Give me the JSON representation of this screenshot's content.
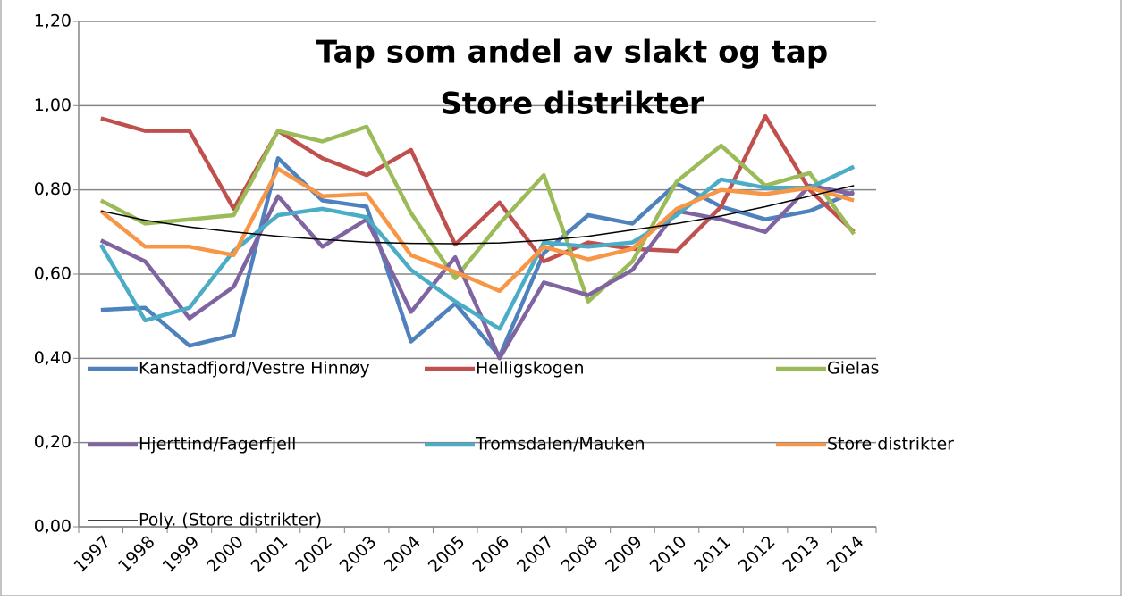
{
  "chart_data": {
    "type": "line",
    "title": "Tap som andel av slakt og tap",
    "subtitle": "Store distrikter",
    "categories": [
      "1997",
      "1998",
      "1999",
      "2000",
      "2001",
      "2002",
      "2003",
      "2004",
      "2005",
      "2006",
      "2007",
      "2008",
      "2009",
      "2010",
      "2011",
      "2012",
      "2013",
      "2014"
    ],
    "series": [
      {
        "name": "Kanstadfjord/Vestre Hinnøy",
        "color": "#4f81bd",
        "values": [
          0.515,
          0.52,
          0.43,
          0.455,
          0.875,
          0.775,
          0.76,
          0.44,
          0.53,
          0.405,
          0.65,
          0.74,
          0.72,
          0.815,
          0.76,
          0.73,
          0.75,
          0.795
        ]
      },
      {
        "name": "Helligskogen",
        "color": "#c0504d",
        "values": [
          0.97,
          0.94,
          0.94,
          0.755,
          0.94,
          0.875,
          0.835,
          0.895,
          0.67,
          0.77,
          0.63,
          0.675,
          0.66,
          0.655,
          0.76,
          0.975,
          0.8,
          0.7
        ]
      },
      {
        "name": "Gielas",
        "color": "#9bbb59",
        "values": [
          0.775,
          0.72,
          0.73,
          0.74,
          0.94,
          0.915,
          0.95,
          0.745,
          0.59,
          0.72,
          0.835,
          0.535,
          0.63,
          0.82,
          0.905,
          0.81,
          0.84,
          0.695
        ]
      },
      {
        "name": "Hjerttind/Fagerfjell",
        "color": "#8064a2",
        "values": [
          0.68,
          0.63,
          0.495,
          0.57,
          0.785,
          0.665,
          0.73,
          0.51,
          0.64,
          0.4,
          0.58,
          0.55,
          0.61,
          0.75,
          0.73,
          0.7,
          0.81,
          0.79
        ]
      },
      {
        "name": "Tromsdalen/Mauken",
        "color": "#4bacc6",
        "values": [
          0.67,
          0.49,
          0.52,
          0.655,
          0.74,
          0.755,
          0.735,
          0.61,
          0.535,
          0.47,
          0.675,
          0.665,
          0.675,
          0.74,
          0.825,
          0.805,
          0.805,
          0.855
        ]
      },
      {
        "name": "Store distrikter",
        "color": "#f79646",
        "values": [
          0.75,
          0.665,
          0.665,
          0.645,
          0.85,
          0.785,
          0.79,
          0.645,
          0.605,
          0.56,
          0.665,
          0.635,
          0.66,
          0.755,
          0.8,
          0.79,
          0.805,
          0.775
        ]
      },
      {
        "name": "Poly. (Store distrikter)",
        "color": "#000000",
        "values": [
          0.75,
          0.728,
          0.712,
          0.7,
          0.69,
          0.682,
          0.676,
          0.673,
          0.672,
          0.674,
          0.68,
          0.69,
          0.705,
          0.72,
          0.738,
          0.76,
          0.785,
          0.81
        ]
      }
    ],
    "ylim": [
      0,
      1.2
    ],
    "yticks": [
      {
        "value": 0,
        "label": "0,00"
      },
      {
        "value": 0.2,
        "label": "0,20"
      },
      {
        "value": 0.4,
        "label": "0,40"
      },
      {
        "value": 0.6,
        "label": "0,60"
      },
      {
        "value": 0.8,
        "label": "0,80"
      },
      {
        "value": 1.0,
        "label": "1,00"
      },
      {
        "value": 1.2,
        "label": "1,20"
      }
    ],
    "grid": true
  }
}
